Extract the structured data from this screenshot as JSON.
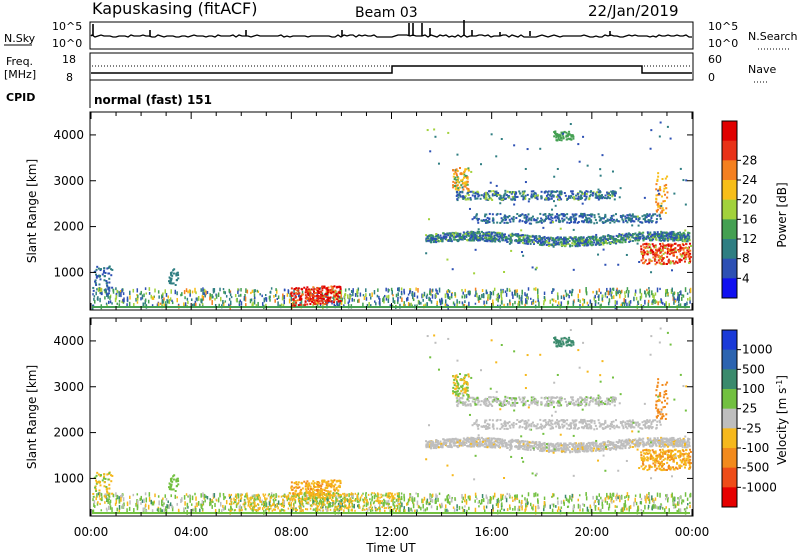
{
  "header": {
    "station": "Kapuskasing (fitACF)",
    "beam": "Beam 03",
    "date": "22/Jan/2019"
  },
  "status_panels": {
    "nsky_label": "N.Sky",
    "nsearch_label": "N.Search",
    "log_ticks": [
      "10^5",
      "10^0"
    ],
    "freq_label_line1": "Freq.",
    "freq_label_line2": "[MHz]",
    "freq_ticks": [
      "18",
      "8"
    ],
    "nave_label": "Nave",
    "nave_ticks": [
      "60",
      "0"
    ],
    "cpid_label": "CPID",
    "cpid_value": "normal (fast) 151"
  },
  "chart_data": [
    {
      "type": "heatmap",
      "panel": "power",
      "ylabel": "Slant Range [km]",
      "y_ticks": [
        1000,
        2000,
        3000,
        4000
      ],
      "ylim": [
        180,
        4500
      ],
      "x_ticks": [
        "00:00",
        "04:00",
        "08:00",
        "12:00",
        "16:00",
        "20:00",
        "00:00"
      ],
      "xlim_hours": [
        0,
        24
      ],
      "colorbar_label": "Power [dB]",
      "colorbar_ticks": [
        "4",
        "8",
        "12",
        "16",
        "20",
        "24",
        "28"
      ],
      "colorbar_colors": [
        "#1010f0",
        "#2d50b4",
        "#2f7e82",
        "#44a052",
        "#a2d23c",
        "#f7be19",
        "#f48020",
        "#e83218",
        "#e00000"
      ]
    },
    {
      "type": "heatmap",
      "panel": "velocity",
      "ylabel": "Slant Range [km]",
      "y_ticks": [
        1000,
        2000,
        3000,
        4000
      ],
      "ylim": [
        180,
        4500
      ],
      "x_ticks": [
        "00:00",
        "04:00",
        "08:00",
        "12:00",
        "16:00",
        "20:00",
        "00:00"
      ],
      "xlim_hours": [
        0,
        24
      ],
      "xlabel": "Time UT",
      "colorbar_label": "Velocity [m s",
      "colorbar_label_sup": "-1",
      "colorbar_ticks": [
        "1000",
        "500",
        "100",
        "25",
        "-25",
        "-100",
        "-500",
        "-1000"
      ],
      "colorbar_colors": [
        "#1a3ad8",
        "#2c64b0",
        "#3a8a6c",
        "#72c040",
        "#bebebe",
        "#f6b81c",
        "#f28a1c",
        "#ee4c18",
        "#e60000"
      ]
    }
  ]
}
